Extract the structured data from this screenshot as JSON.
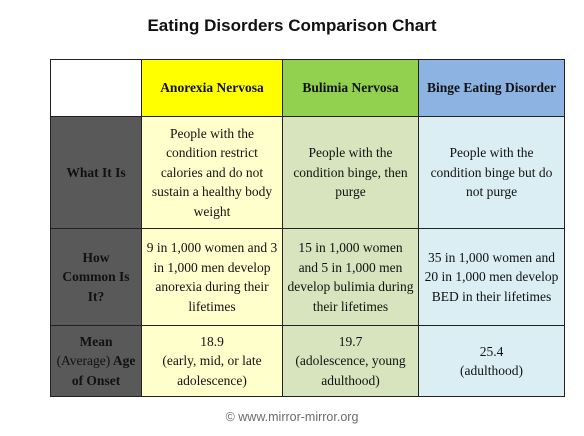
{
  "title": "Eating Disorders Comparison Chart",
  "columns": {
    "anorexia": "Anorexia Nervosa",
    "bulimia": "Bulimia Nervosa",
    "binge": "Binge Eating Disorder"
  },
  "rows": {
    "what_it_is": {
      "label": "What It Is",
      "anorexia": "People with the condition restrict calories and do not sustain a healthy body weight",
      "bulimia": "People with the condition binge, then purge",
      "binge": "People with the condition binge but do not purge"
    },
    "how_common": {
      "label": "How Common Is It?",
      "anorexia": "9 in 1,000 women and 3 in 1,000 men develop anorexia during their lifetimes",
      "bulimia": "15 in 1,000 women and 5 in 1,000 men develop bulimia during their lifetimes",
      "binge": "35 in 1,000 women and 20 in 1,000 men develop BED in their lifetimes"
    },
    "onset": {
      "label_mean": "Mean",
      "label_average": "(Average)",
      "label_age": "Age of Onset",
      "anorexia_value": "18.9",
      "anorexia_note": "(early, mid, or late adolescence)",
      "bulimia_value": "19.7",
      "bulimia_note": "(adolescence, young adulthood)",
      "binge_value": "25.4",
      "binge_note": "(adulthood)"
    }
  },
  "colors": {
    "anorexia_header": "#ffff00",
    "bulimia_header": "#92d050",
    "binge_header": "#8db3e2",
    "anorexia_cell": "#ffffcc",
    "bulimia_cell": "#d7e4bd",
    "binge_cell": "#dbeef4",
    "row_label": "#595959"
  },
  "footer": "© www.mirror-mirror.org"
}
